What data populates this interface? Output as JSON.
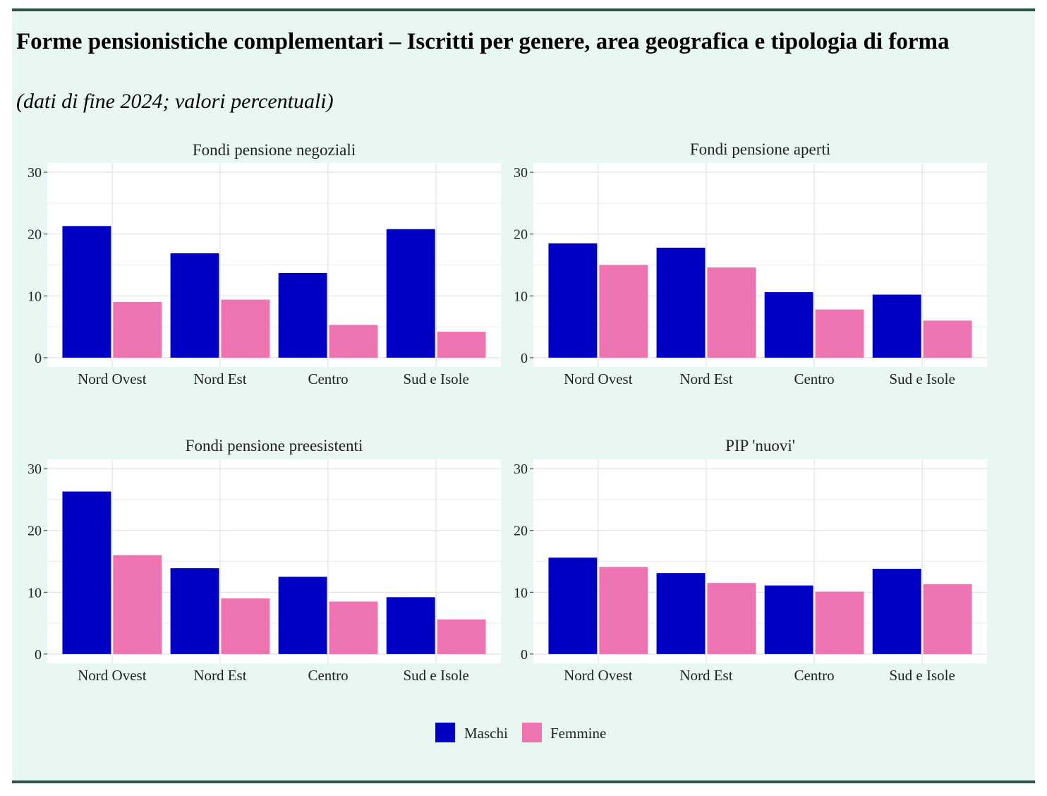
{
  "title": "Forme pensionistiche complementari – Iscritti per genere, area geografica e tipologia di forma",
  "subtitle": "(dati di fine 2024; valori percentuali)",
  "legend": [
    {
      "label": "Maschi",
      "color": "#0000c4"
    },
    {
      "label": "Femmine",
      "color": "#ee73b1"
    }
  ],
  "chart_data": [
    {
      "type": "bar",
      "title": "Fondi pensione negoziali",
      "categories": [
        "Nord Ovest",
        "Nord Est",
        "Centro",
        "Sud e Isole"
      ],
      "series": [
        {
          "name": "Maschi",
          "values": [
            21.3,
            16.9,
            13.7,
            20.8
          ]
        },
        {
          "name": "Femmine",
          "values": [
            9.0,
            9.4,
            5.3,
            4.2
          ]
        }
      ],
      "yticks": [
        0,
        10,
        20,
        30
      ],
      "ylim": [
        -1.5,
        31.5
      ]
    },
    {
      "type": "bar",
      "title": "Fondi pensione aperti",
      "categories": [
        "Nord Ovest",
        "Nord Est",
        "Centro",
        "Sud e Isole"
      ],
      "series": [
        {
          "name": "Maschi",
          "values": [
            18.5,
            17.8,
            10.6,
            10.2
          ]
        },
        {
          "name": "Femmine",
          "values": [
            15.0,
            14.6,
            7.8,
            6.0
          ]
        }
      ],
      "yticks": [
        0,
        10,
        20,
        30
      ],
      "ylim": [
        -1.5,
        31.5
      ]
    },
    {
      "type": "bar",
      "title": "Fondi pensione preesistenti",
      "categories": [
        "Nord Ovest",
        "Nord Est",
        "Centro",
        "Sud e Isole"
      ],
      "series": [
        {
          "name": "Maschi",
          "values": [
            26.3,
            13.9,
            12.5,
            9.2
          ]
        },
        {
          "name": "Femmine",
          "values": [
            16.0,
            9.0,
            8.5,
            5.6
          ]
        }
      ],
      "yticks": [
        0,
        10,
        20,
        30
      ],
      "ylim": [
        -1.5,
        31.5
      ]
    },
    {
      "type": "bar",
      "title": "PIP 'nuovi'",
      "categories": [
        "Nord Ovest",
        "Nord Est",
        "Centro",
        "Sud e Isole"
      ],
      "series": [
        {
          "name": "Maschi",
          "values": [
            15.6,
            13.1,
            11.1,
            13.8
          ]
        },
        {
          "name": "Femmine",
          "values": [
            14.1,
            11.5,
            10.1,
            11.3
          ]
        }
      ],
      "yticks": [
        0,
        10,
        20,
        30
      ],
      "ylim": [
        -1.5,
        31.5
      ]
    }
  ]
}
